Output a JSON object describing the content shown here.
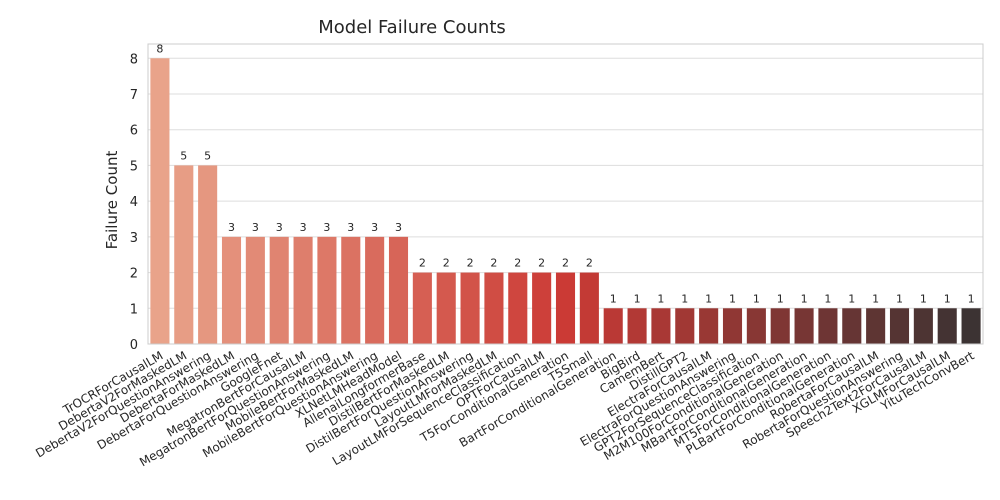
{
  "chart_data": {
    "type": "bar",
    "title": "Model Failure Counts",
    "xlabel": "",
    "ylabel": "Failure Count",
    "ylim": [
      0,
      8.4
    ],
    "yticks": [
      0,
      1,
      2,
      3,
      4,
      5,
      6,
      7,
      8
    ],
    "grid": "horizontal",
    "categories": [
      "TrOCRForCausalLM",
      "DebertaV2ForMaskedLM",
      "DebertaV2ForQuestionAnswering",
      "DebertaForMaskedLM",
      "DebertaForQuestionAnswering",
      "GoogleFnet",
      "MegatronBertForCausalLM",
      "MegatronBertForQuestionAnswering",
      "MobileBertForMaskedLM",
      "MobileBertForQuestionAnswering",
      "XLNetLMHeadModel",
      "AllenaiLongformerBase",
      "DistilBertForMaskedLM",
      "DistilBertForQuestionAnswering",
      "LayoutLMForMaskedLM",
      "LayoutLMForSequenceClassification",
      "OPTForCausalLM",
      "T5ForConditionalGeneration",
      "T5Small",
      "BartForConditionalGeneration",
      "BigBird",
      "CamemBert",
      "DistillGPT2",
      "ElectraForCausalLM",
      "ElectraForQuestionAnswering",
      "GPT2ForSequenceClassification",
      "M2M100ForConditionalGeneration",
      "MBartForConditionalGeneration",
      "MT5ForConditionalGeneration",
      "PLBartForConditionalGeneration",
      "RobertaForCausalLM",
      "RobertaForQuestionAnswering",
      "Speech2Text2ForCausalLM",
      "XGLMForCausalLM",
      "YituTechConvBert"
    ],
    "values": [
      8,
      5,
      5,
      3,
      3,
      3,
      3,
      3,
      3,
      3,
      3,
      2,
      2,
      2,
      2,
      2,
      2,
      2,
      2,
      1,
      1,
      1,
      1,
      1,
      1,
      1,
      1,
      1,
      1,
      1,
      1,
      1,
      1,
      1,
      1
    ],
    "palette": {
      "start": "#e9a38a",
      "middle": "#cb3a35",
      "end": "#3c3333"
    }
  }
}
